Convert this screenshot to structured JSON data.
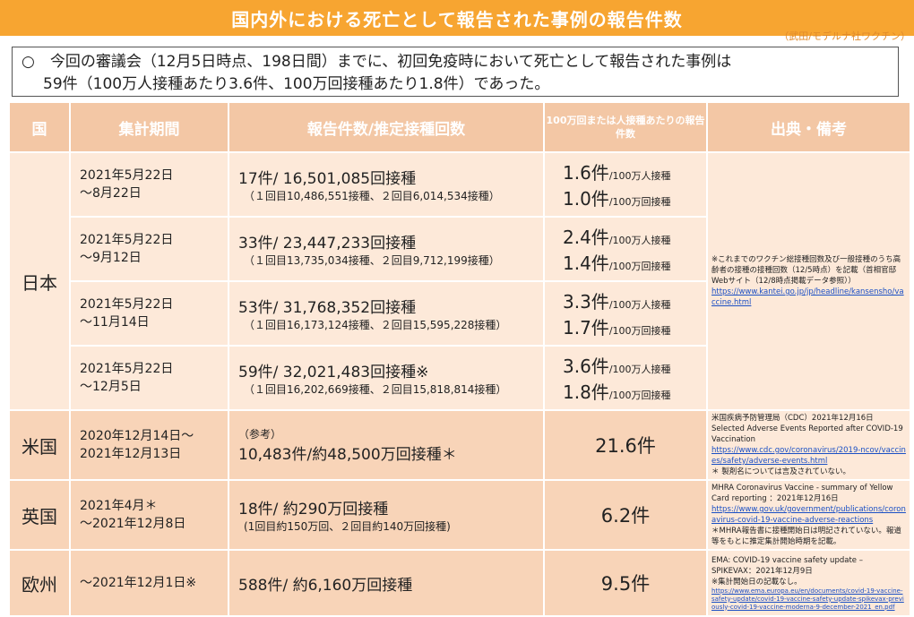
{
  "header": {
    "title": "国内外における死亡として報告された事例の報告件数",
    "subtitle": "（武田/モデルナ社ワクチン）"
  },
  "summary": {
    "line1": "○　今回の審議会（12月5日時点、198日間）までに、初回免疫時において死亡として報告された事例は",
    "line2": "59件（100万人接種あたり3.6件、100万回接種あたり1.8件）であった。"
  },
  "table": {
    "headers": [
      "国",
      "集計期間",
      "報告件数/推定接種回数",
      "100万回または人接種あたりの報告件数",
      "出典・備考"
    ],
    "japan": {
      "country": "日本",
      "rows": [
        {
          "period1": "2021年5月22日",
          "period2": "～8月22日",
          "count": "17件/ 16,501,085回接種",
          "detail": "（１回目10,486,551接種、２回目6,014,534接種）",
          "rate1": "1.6件",
          "unit1": "/100万人接種",
          "rate2": "1.0件",
          "unit2": "/100万回接種"
        },
        {
          "period1": "2021年5月22日",
          "period2": "～9月12日",
          "count": "33件/ 23,447,233回接種",
          "detail": "（１回目13,735,034接種、２回目9,712,199接種）",
          "rate1": "2.4件",
          "unit1": "/100万人接種",
          "rate2": "1.4件",
          "unit2": "/100万回接種"
        },
        {
          "period1": "2021年5月22日",
          "period2": "～11月14日",
          "count": "53件/ 31,768,352回接種",
          "detail": "（１回目16,173,124接種、２回目15,595,228接種）",
          "rate1": "3.3件",
          "unit1": "/100万人接種",
          "rate2": "1.7件",
          "unit2": "/100万回接種"
        },
        {
          "period1": "2021年5月22日",
          "period2": "～12月5日",
          "count": "59件/ 32,021,483回接種※",
          "detail": "（１回目16,202,669接種、２回目15,818,814接種）",
          "rate1": "3.6件",
          "unit1": "/100万人接種",
          "rate2": "1.8件",
          "unit2": "/100万回接種"
        }
      ],
      "source_text": "※これまでのワクチン総接種回数及び一般接種のうち高齢者の接種の接種回数（12/5時点）を記載（首相官邸Webサイト（12/8時点掲載データ参照））",
      "source_link": "https://www.kantei.go.jp/jp/headline/kansensho/vaccine.html"
    },
    "us": {
      "country": "米国",
      "period1": "2020年12月14日～",
      "period2": "2021年12月13日",
      "ref": "（参考）",
      "count": "10,483件/約48,500万回接種＊",
      "rate": "21.6件",
      "source1": "米国疾病予防管理局（CDC）2021年12月16日",
      "source2": "Selected Adverse Events Reported after COVID-19 Vaccination",
      "source_link": "https://www.cdc.gov/coronavirus/2019-ncov/vaccines/safety/adverse-events.html",
      "source3": "＊ 製剤名については言及されていない。"
    },
    "uk": {
      "country": "英国",
      "period1": "2021年4月＊",
      "period2": "～2021年12月8日",
      "count": "18件/ 約290万回接種",
      "detail": "(1回目約150万回、２回目約140万回接種)",
      "rate": "6.2件",
      "source1": "MHRA Coronavirus Vaccine - summary of Yellow Card reporting ：2021年12月16日",
      "source_link": "https://www.gov.uk/government/publications/coronavirus-covid-19-vaccine-adverse-reactions",
      "source3": "＊MHRA報告書に接種開始日は明記されていない。報道等をもとに推定集計開始時期を記載。"
    },
    "eu": {
      "country": "欧州",
      "period1": "～2021年12月1日※",
      "count": "588件/ 約6,160万回接種",
      "rate": "9.5件",
      "source1": "EMA: COVID-19 vaccine safety update – SPIKEVAX：2021年12月9日",
      "source2": "※集計開始日の記載なし。",
      "source_link": "https://www.ema.europa.eu/en/documents/covid-19-vaccine-safety-update/covid-19-vaccine-safety-update-spikevax-previously-covid-19-vaccine-moderna-9-december-2021_en.pdf"
    }
  }
}
